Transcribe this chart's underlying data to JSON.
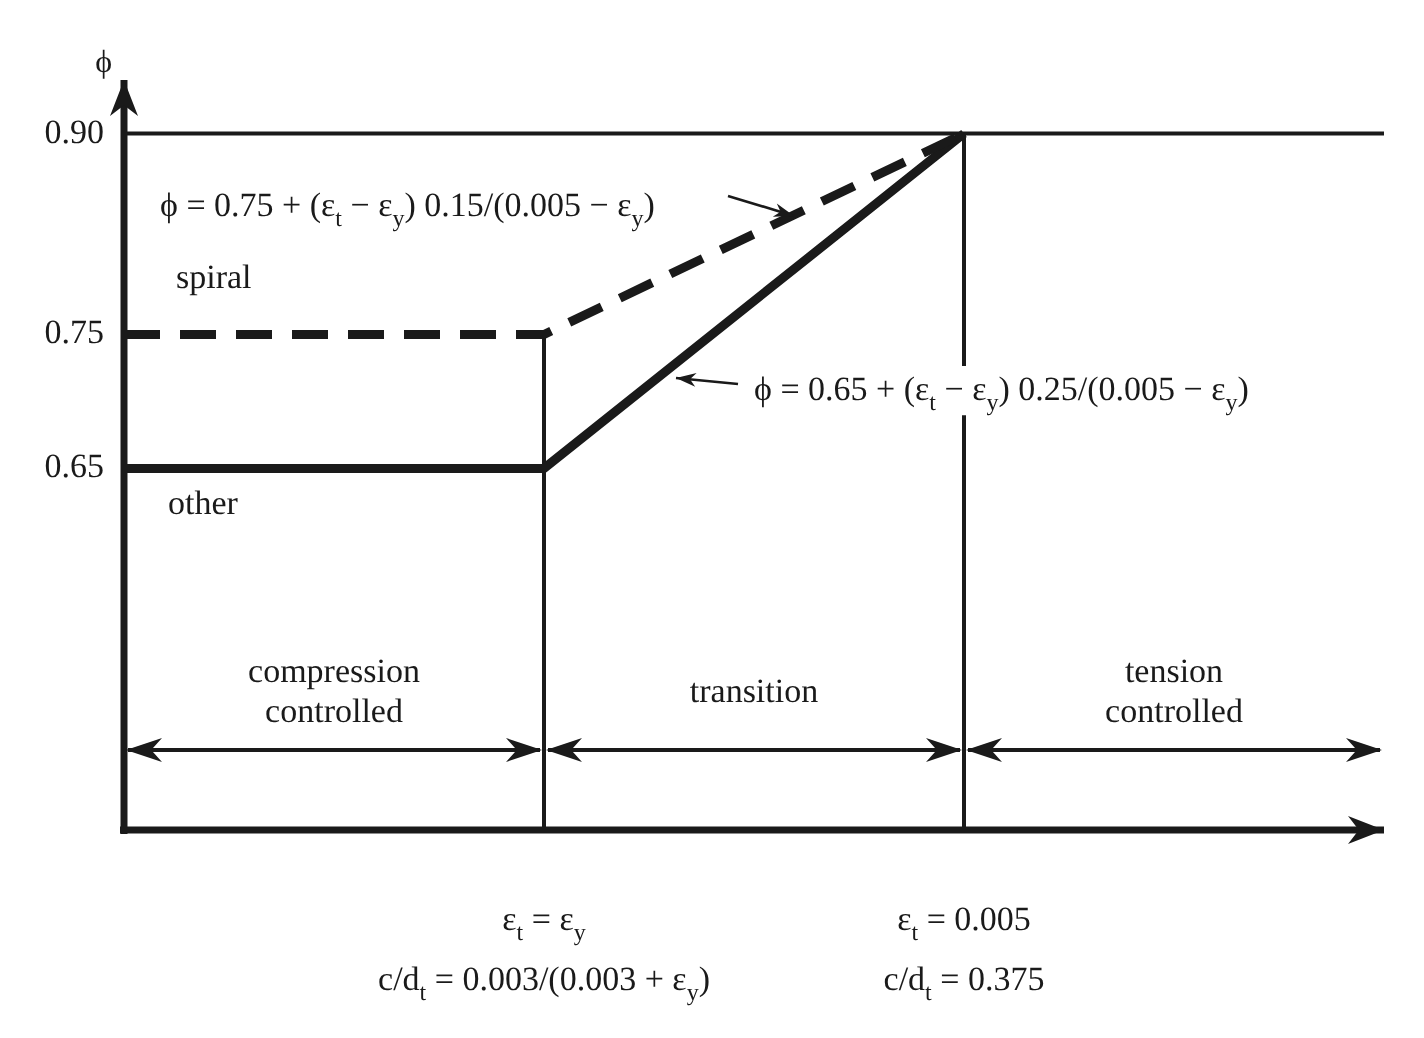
{
  "chart_data": {
    "type": "line",
    "ylabel": "ϕ",
    "categories": [
      null,
      "ε$_{t}$ = ε$_{y}$",
      "ε$_{t}$ = 0.005",
      null
    ],
    "series": [
      {
        "name": "spiral",
        "color": "#1a1a1a",
        "values": [
          0.75,
          0.75,
          0.9,
          null
        ],
        "line_style": "dashed"
      },
      {
        "name": "other",
        "color": "#1a1a1a",
        "values": [
          0.65,
          0.65,
          0.9,
          null
        ],
        "line_style": "solid"
      }
    ],
    "ylim": [
      0.38,
      0.94
    ],
    "yticks": [
      0.65,
      0.75,
      {
        "value": 0.9,
        "label": "0.90"
      }
    ],
    "ref_lines": [
      {
        "axis": "x",
        "value": "ε$_{t}$ = ε$_{y}$",
        "color": "#1a1a1a"
      },
      {
        "axis": "x",
        "value": "ε$_{t}$ = 0.005",
        "color": "#1a1a1a"
      },
      {
        "axis": "y",
        "value": 0.9,
        "color": "#1a1a1a"
      }
    ],
    "annotations": [
      "ϕ = 0.75 + (ε$_{t}$ − ε$_{y}$) 0.15/(0.005 − ε$_{y}$)",
      "ϕ = 0.65 + (ε$_{t}$ − ε$_{y}$) 0.25/(0.005 − ε$_{y}$)",
      "compression controlled",
      "transition",
      "tension controlled",
      "c/d$_{t}$ = 0.003/(0.003 + ε$_{y}$)",
      "c/d$_{t}$ = 0.375"
    ],
    "grid": false,
    "legend": false,
    "marker": "none"
  }
}
